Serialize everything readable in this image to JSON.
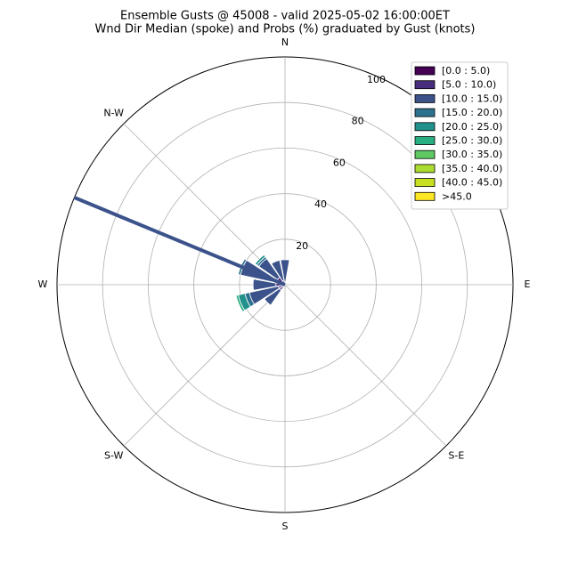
{
  "chart_data": {
    "type": "windrose",
    "title": "Ensemble Gusts @ 45008 - valid 2025-05-02 16:00:00ET",
    "subtitle": "Wnd Dir Median (spoke) and Probs (%) graduated by Gust (knots)",
    "x": [
      0,
      22.5,
      45,
      67.5,
      90,
      112.5,
      135,
      157.5,
      180,
      202.5,
      225,
      247.5,
      270,
      292.5,
      315,
      337.5
    ],
    "series": [
      {
        "name": "[0.0 : 5.0)",
        "color": "#440154",
        "values": [
          0,
          0,
          0,
          0,
          0,
          0,
          0,
          0,
          0,
          0,
          1,
          1,
          1,
          1,
          1,
          0
        ]
      },
      {
        "name": "[5.0 : 10.0)",
        "color": "#472d7b",
        "values": [
          1,
          0,
          0,
          0,
          0,
          0,
          0,
          0,
          0,
          0,
          2,
          2,
          3,
          2,
          3,
          2
        ]
      },
      {
        "name": "[10.0 : 15.0)",
        "color": "#3b528b",
        "values": [
          10,
          0,
          0,
          0,
          0,
          0,
          0,
          0,
          0,
          0,
          8,
          13,
          10,
          17,
          10,
          9
        ]
      },
      {
        "name": "[15.0 : 20.0)",
        "color": "#2c728e",
        "values": [
          0,
          0,
          0,
          0,
          0,
          0,
          0,
          0,
          0,
          0,
          0,
          2,
          0,
          1,
          1,
          0
        ]
      },
      {
        "name": "[20.0 : 25.0)",
        "color": "#21918c",
        "values": [
          0,
          0,
          0,
          0,
          0,
          0,
          0,
          0,
          0,
          0,
          0,
          3,
          0,
          0,
          1,
          0
        ]
      },
      {
        "name": "[25.0 : 30.0)",
        "color": "#28ae80",
        "values": [
          0,
          0,
          0,
          0,
          0,
          0,
          0,
          0,
          0,
          0,
          0,
          1,
          0,
          0,
          0,
          0
        ]
      },
      {
        "name": "[30.0 : 35.0)",
        "color": "#5ec962",
        "values": [
          0,
          0,
          0,
          0,
          0,
          0,
          0,
          0,
          0,
          0,
          0,
          0,
          0,
          0,
          0,
          0
        ]
      },
      {
        "name": "[35.0 : 40.0)",
        "color": "#addc30",
        "values": [
          0,
          0,
          0,
          0,
          0,
          0,
          0,
          0,
          0,
          0,
          0,
          0,
          0,
          0,
          0,
          0
        ]
      },
      {
        "name": "[40.0 : 45.0)",
        "color": "#c8e020",
        "values": [
          0,
          0,
          0,
          0,
          0,
          0,
          0,
          0,
          0,
          0,
          0,
          0,
          0,
          0,
          0,
          0
        ]
      },
      {
        "name": ">45.0",
        "color": "#fde725",
        "values": [
          0,
          0,
          0,
          0,
          0,
          0,
          0,
          0,
          0,
          0,
          0,
          0,
          0,
          0,
          0,
          0
        ]
      }
    ],
    "spoke": {
      "direction": 292.5,
      "color": "#3b528b"
    },
    "xticks": [
      {
        "value": 0,
        "label": "N"
      },
      {
        "value": 90,
        "label": "E"
      },
      {
        "value": 135,
        "label": "S-E"
      },
      {
        "value": 180,
        "label": "S"
      },
      {
        "value": 225,
        "label": "S-W"
      },
      {
        "value": 270,
        "label": "W"
      },
      {
        "value": 315,
        "label": "N-W"
      }
    ],
    "ylim": [
      0,
      100
    ],
    "yticks": [
      20,
      40,
      60,
      80,
      100
    ],
    "grid": true,
    "legend": "upper right"
  }
}
